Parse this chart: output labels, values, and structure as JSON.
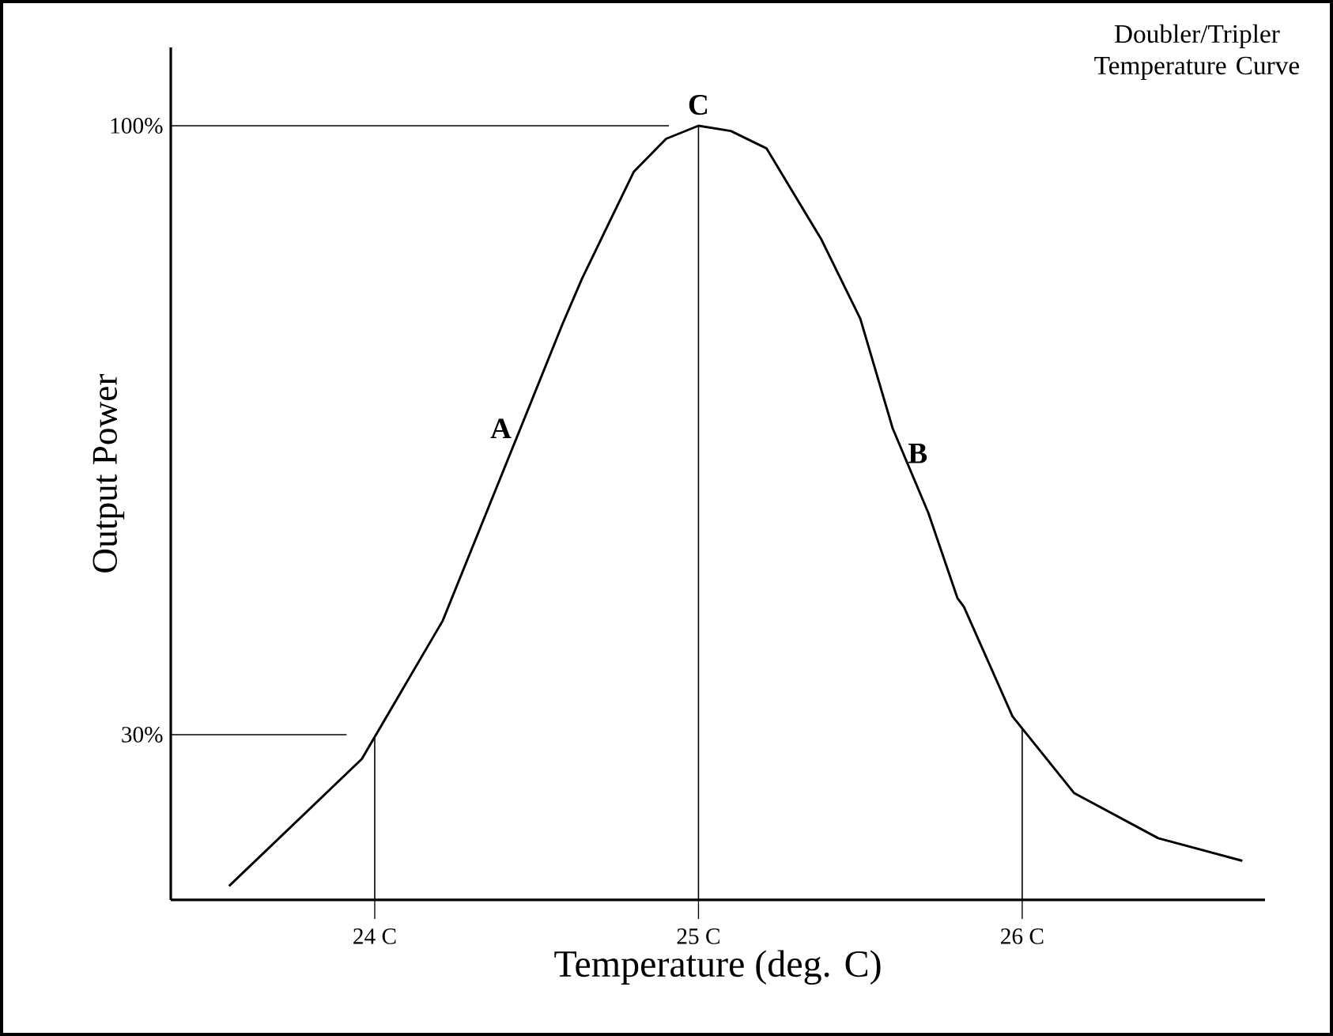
{
  "chart_data": {
    "type": "line",
    "title": "Doubler/Tripler Temperature Curve",
    "xlabel": "Temperature (deg. C)",
    "ylabel": "Output Power",
    "xlim": [
      23.37,
      26.75
    ],
    "ylim": [
      11,
      109
    ],
    "xticks": [
      {
        "value": 24,
        "label": "24 C"
      },
      {
        "value": 25,
        "label": "25 C"
      },
      {
        "value": 26,
        "label": "26 C"
      }
    ],
    "yticks": [
      {
        "value": 30,
        "label": "30%"
      },
      {
        "value": 100,
        "label": "100%"
      }
    ],
    "series": [
      {
        "color": "#000000",
        "x": [
          23.55,
          23.96,
          24.21,
          24.45,
          24.58,
          24.64,
          24.8,
          24.9,
          25.0,
          25.1,
          25.21,
          25.38,
          25.5,
          25.6,
          25.71,
          25.8,
          25.82,
          25.97,
          26.16,
          26.42,
          26.68
        ],
        "values": [
          12.6,
          27.2,
          43.1,
          65.2,
          77.2,
          82.4,
          94.7,
          98.5,
          100,
          99.4,
          97.4,
          86.9,
          77.8,
          65.2,
          55.5,
          45.7,
          44.7,
          32.1,
          23.3,
          18.1,
          15.5
        ]
      }
    ],
    "ref_lines": [
      {
        "axis": "x",
        "value": 24,
        "color": "#000000"
      },
      {
        "axis": "x",
        "value": 25,
        "color": "#000000"
      },
      {
        "axis": "x",
        "value": 26,
        "color": "#000000"
      },
      {
        "axis": "y",
        "value": 30,
        "color": "#000000"
      },
      {
        "axis": "y",
        "value": 100,
        "color": "#000000"
      }
    ],
    "annotations": [
      {
        "text": "A",
        "x": 24.45,
        "y": 65.2
      },
      {
        "text": "B",
        "x": 25.6,
        "y": 65.2
      },
      {
        "text": "C",
        "x": 25.0,
        "y": 100
      }
    ],
    "grid": false,
    "marker": "none",
    "line_style": "solid"
  }
}
